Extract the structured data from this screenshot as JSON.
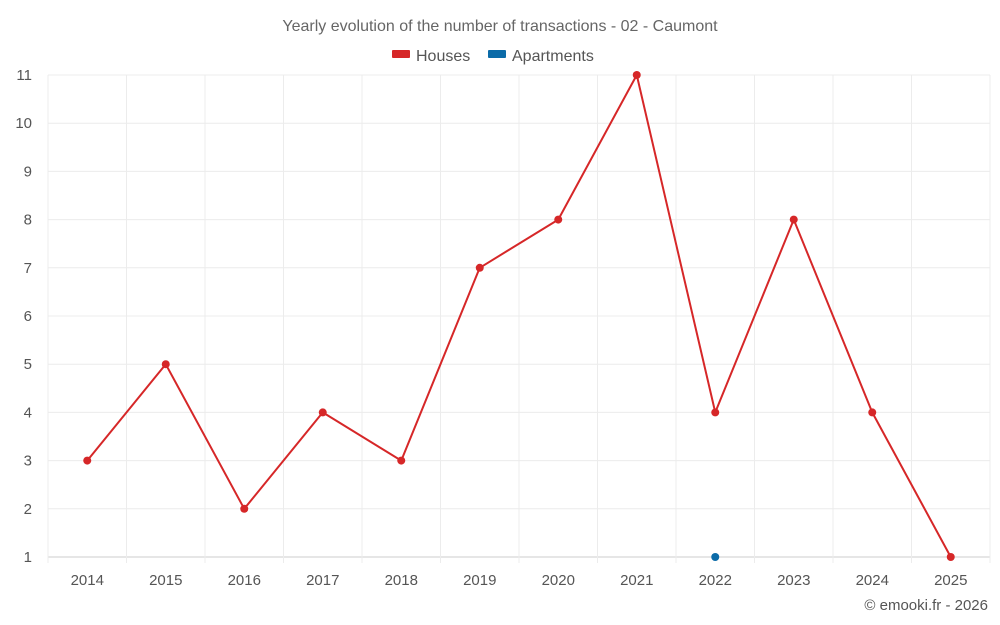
{
  "chart_data": {
    "type": "line",
    "title": "Yearly evolution of the number of transactions - 02 - Caumont",
    "categories": [
      "2014",
      "2015",
      "2016",
      "2017",
      "2018",
      "2019",
      "2020",
      "2021",
      "2022",
      "2023",
      "2024",
      "2025"
    ],
    "series": [
      {
        "name": "Houses",
        "color": "#d62728",
        "values": [
          3,
          5,
          2,
          4,
          3,
          7,
          8,
          11,
          4,
          8,
          4,
          1
        ]
      },
      {
        "name": "Apartments",
        "color": "#0b6ba8",
        "values": [
          null,
          null,
          null,
          null,
          null,
          null,
          null,
          null,
          1,
          null,
          null,
          null
        ]
      }
    ],
    "ylim": [
      1,
      11
    ],
    "yticks": [
      1,
      2,
      3,
      4,
      5,
      6,
      7,
      8,
      9,
      10,
      11
    ],
    "xlabel": "",
    "ylabel": "",
    "grid": true,
    "legend": "top-center"
  },
  "credit": "© emooki.fr - 2026"
}
